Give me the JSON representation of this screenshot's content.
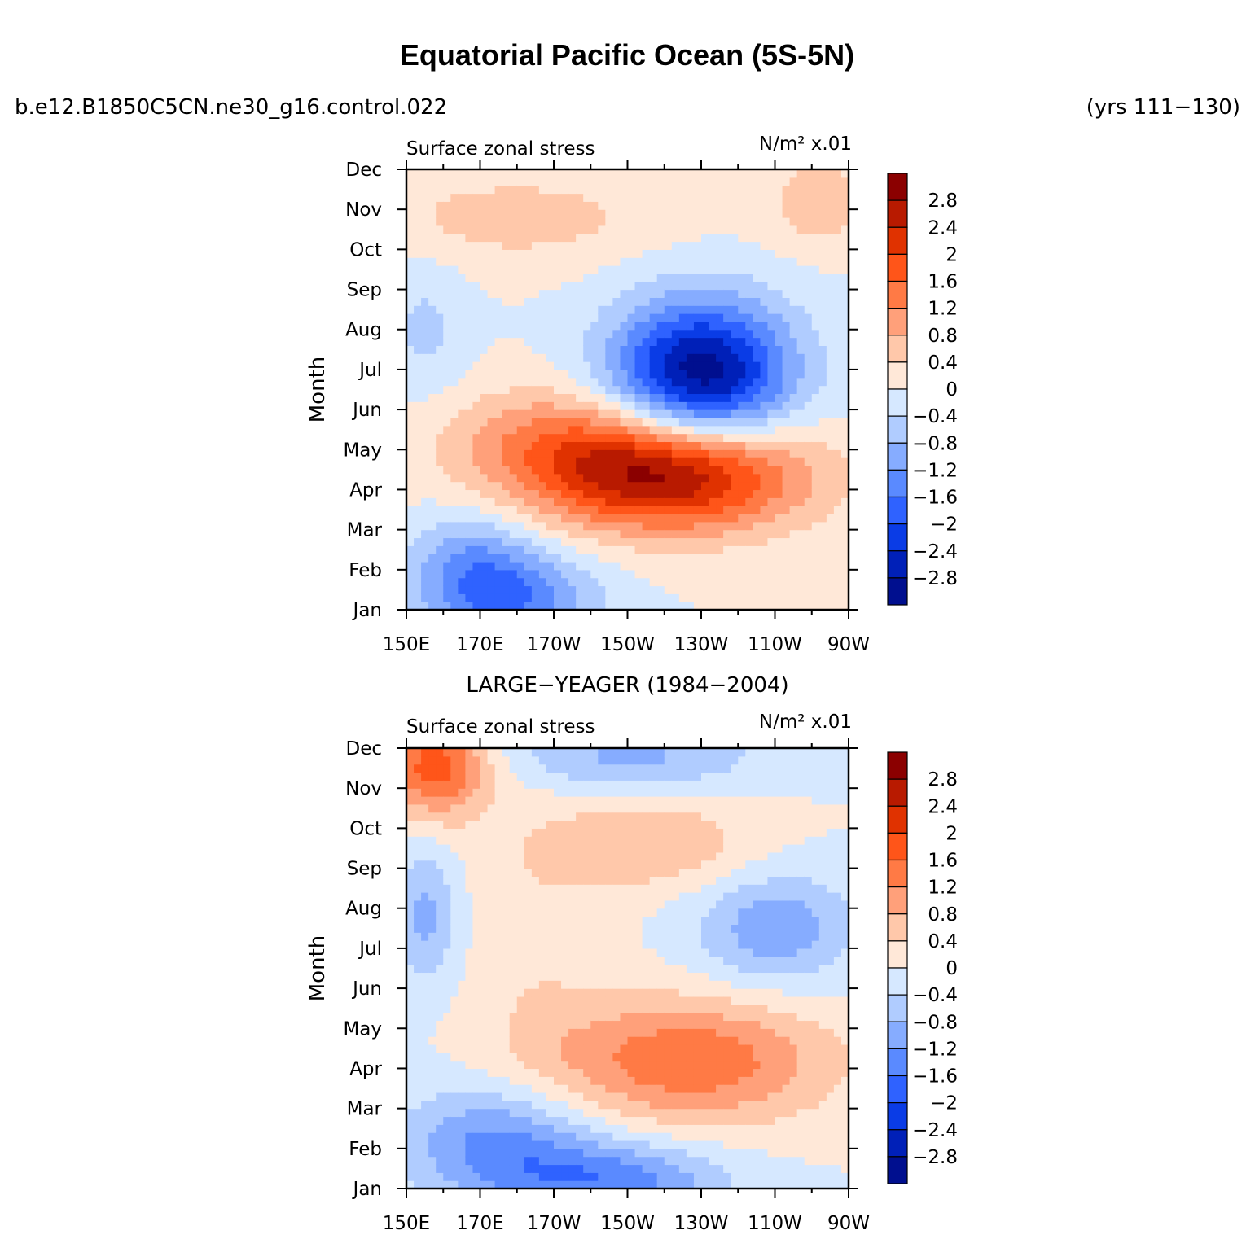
{
  "header": {
    "title": "Equatorial Pacific Ocean (5S-5N)",
    "case_name": "b.e12.B1850C5CN.ne30_g16.control.022",
    "years": "(yrs 111−130)"
  },
  "colorbar": {
    "levels": [
      "2.8",
      "2.4",
      "2",
      "1.6",
      "1.2",
      "0.8",
      "0.4",
      "0",
      "−0.4",
      "−0.8",
      "−1.2",
      "−1.6",
      "−2",
      "−2.4",
      "−2.8"
    ],
    "level_values": [
      2.8,
      2.4,
      2.0,
      1.6,
      1.2,
      0.8,
      0.4,
      0,
      -0.4,
      -0.8,
      -1.2,
      -1.6,
      -2.0,
      -2.4,
      -2.8
    ],
    "colors": [
      "#8b0000",
      "#b81a00",
      "#e03200",
      "#ff5519",
      "#ff7a45",
      "#ffa07a",
      "#ffc8aa",
      "#ffe8d8",
      "#d6e8ff",
      "#b0ccff",
      "#86acff",
      "#5a8aff",
      "#2f62ff",
      "#0a3ce6",
      "#0020b8",
      "#000f8f"
    ]
  },
  "chart_data": [
    {
      "type": "heatmap",
      "panel_title": "",
      "left_string": "Surface zonal stress",
      "right_string": "N/m² x.01",
      "xlabel": "",
      "ylabel": "Month",
      "x_tick_labels": [
        "150E",
        "170E",
        "170W",
        "150W",
        "130W",
        "110W",
        "90W"
      ],
      "y_tick_labels": [
        "Jan",
        "Feb",
        "Mar",
        "Apr",
        "May",
        "Jun",
        "Jul",
        "Aug",
        "Sep",
        "Oct",
        "Nov",
        "Dec"
      ],
      "x_range": [
        150,
        270
      ],
      "y_range": [
        1,
        12
      ],
      "features": [
        {
          "kind": "neg",
          "lon": 230,
          "month": 6.9,
          "sx": 17,
          "sy": 1.3,
          "amp": 3.1
        },
        {
          "kind": "pos",
          "lon": 222,
          "month": 4.4,
          "sx": 25,
          "sy": 1.0,
          "amp": 2.9
        },
        {
          "kind": "pos",
          "lon": 190,
          "month": 5.2,
          "sx": 22,
          "sy": 1.0,
          "amp": 1.0
        },
        {
          "kind": "neg",
          "lon": 178,
          "month": 1.3,
          "sx": 16,
          "sy": 0.8,
          "amp": 1.5
        },
        {
          "kind": "neg",
          "lon": 168,
          "month": 2.3,
          "sx": 12,
          "sy": 0.9,
          "amp": 0.9
        },
        {
          "kind": "pos",
          "lon": 180,
          "month": 10.8,
          "sx": 28,
          "sy": 0.8,
          "amp": 0.6
        },
        {
          "kind": "pos",
          "lon": 262,
          "month": 11.2,
          "sx": 10,
          "sy": 0.8,
          "amp": 0.7
        },
        {
          "kind": "neg",
          "lon": 155,
          "month": 8.0,
          "sx": 8,
          "sy": 1.2,
          "amp": 0.5
        }
      ]
    },
    {
      "type": "heatmap",
      "panel_title": "LARGE−YEAGER (1984−2004)",
      "left_string": "Surface zonal stress",
      "right_string": "N/m² x.01",
      "xlabel": "",
      "ylabel": "Month",
      "x_tick_labels": [
        "150E",
        "170E",
        "170W",
        "150W",
        "130W",
        "110W",
        "90W"
      ],
      "y_tick_labels": [
        "Jan",
        "Feb",
        "Mar",
        "Apr",
        "May",
        "Jun",
        "Jul",
        "Aug",
        "Sep",
        "Oct",
        "Nov",
        "Dec"
      ],
      "x_range": [
        150,
        270
      ],
      "y_range": [
        1,
        12
      ],
      "features": [
        {
          "kind": "pos",
          "lon": 226,
          "month": 4.2,
          "sx": 27,
          "sy": 1.1,
          "amp": 1.55
        },
        {
          "kind": "pos",
          "lon": 158,
          "month": 11.6,
          "sx": 10,
          "sy": 0.9,
          "amp": 1.9
        },
        {
          "kind": "pos",
          "lon": 216,
          "month": 9.6,
          "sx": 20,
          "sy": 0.8,
          "amp": 0.8
        },
        {
          "kind": "pos",
          "lon": 185,
          "month": 7.0,
          "sx": 12,
          "sy": 3.0,
          "amp": 0.3
        },
        {
          "kind": "neg",
          "lon": 175,
          "month": 2.2,
          "sx": 18,
          "sy": 1.0,
          "amp": 1.3
        },
        {
          "kind": "neg",
          "lon": 205,
          "month": 1.2,
          "sx": 22,
          "sy": 0.7,
          "amp": 1.4
        },
        {
          "kind": "neg",
          "lon": 210,
          "month": 11.8,
          "sx": 25,
          "sy": 0.6,
          "amp": 0.9
        },
        {
          "kind": "neg",
          "lon": 250,
          "month": 7.5,
          "sx": 15,
          "sy": 1.0,
          "amp": 1.1
        },
        {
          "kind": "neg",
          "lon": 155,
          "month": 7.8,
          "sx": 6,
          "sy": 1.2,
          "amp": 0.9
        }
      ]
    }
  ]
}
